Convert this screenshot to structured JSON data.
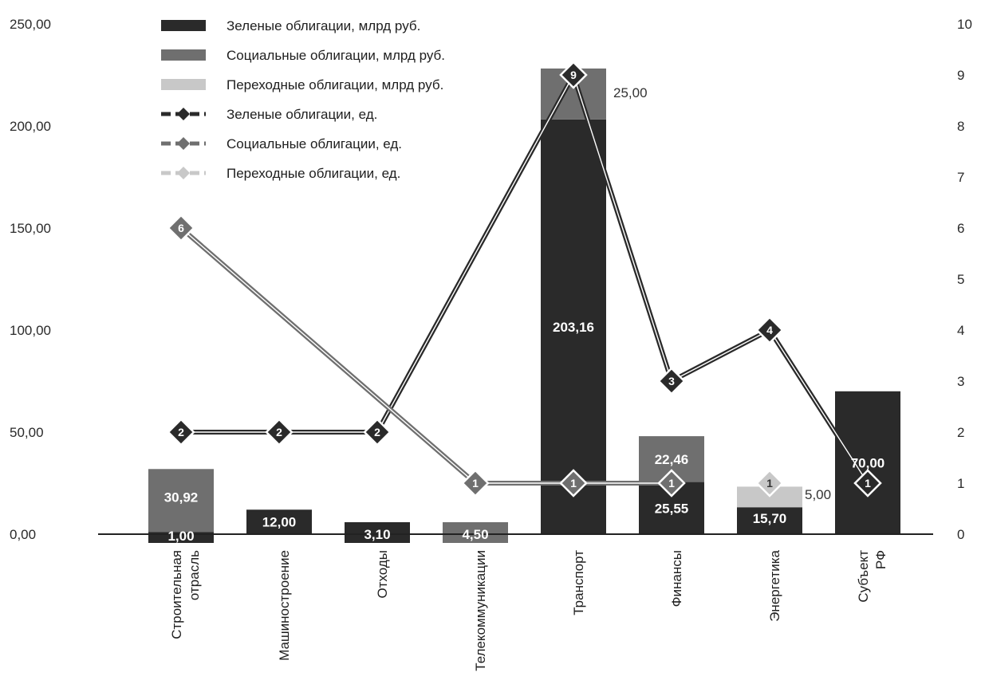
{
  "chart_data": {
    "type": "bar",
    "stacked": true,
    "categories": [
      "Строительная отрасль",
      "Машиностроение",
      "Отходы",
      "Телекоммуникации",
      "Транспорт",
      "Финансы",
      "Энергетика",
      "Субъект РФ"
    ],
    "series": [
      {
        "name": "Зеленые облигации, млрд руб.",
        "kind": "bar",
        "color": "#2a2a2a",
        "values": [
          1.0,
          12.0,
          3.1,
          0,
          203.16,
          25.55,
          15.7,
          70.0
        ],
        "labels": [
          "1,00",
          "12,00",
          "3,10",
          "",
          "203,16",
          "25,55",
          "15,70",
          "70,00"
        ]
      },
      {
        "name": "Социальные облигации, млрд руб.",
        "kind": "bar",
        "color": "#6f6f6f",
        "values": [
          30.92,
          0,
          0,
          4.5,
          25.0,
          22.46,
          0,
          0
        ],
        "labels": [
          "30,92",
          "",
          "",
          "4,50",
          "25,00",
          "22,46",
          "",
          ""
        ]
      },
      {
        "name": "Переходные облигации, млрд руб.",
        "kind": "bar",
        "color": "#c8c8c8",
        "values": [
          0,
          0,
          0,
          0,
          0,
          0,
          5.0,
          0
        ],
        "labels": [
          "",
          "",
          "",
          "",
          "",
          "",
          "5,00",
          ""
        ]
      },
      {
        "name": "Зеленые облигации, ед.",
        "kind": "line",
        "axis": "right",
        "color": "#2a2a2a",
        "values": [
          2,
          2,
          2,
          null,
          9,
          3,
          4,
          1
        ]
      },
      {
        "name": "Социальные облигации, ед.",
        "kind": "line",
        "axis": "right",
        "color": "#6f6f6f",
        "values": [
          6,
          null,
          null,
          1,
          1,
          1,
          null,
          null
        ]
      },
      {
        "name": "Переходные облигации, ед.",
        "kind": "line",
        "axis": "right",
        "color": "#c8c8c8",
        "values": [
          null,
          null,
          null,
          null,
          null,
          null,
          1,
          null
        ]
      }
    ],
    "y_left": {
      "ylim": [
        0,
        250
      ],
      "ticks": [
        "0,00",
        "50,00",
        "100,00",
        "150,00",
        "200,00",
        "250,00"
      ]
    },
    "y_right": {
      "ylim": [
        0,
        10
      ],
      "ticks": [
        "0",
        "1",
        "2",
        "3",
        "4",
        "5",
        "6",
        "7",
        "8",
        "9",
        "10"
      ]
    },
    "legend_position": "top-left",
    "grid": false
  }
}
